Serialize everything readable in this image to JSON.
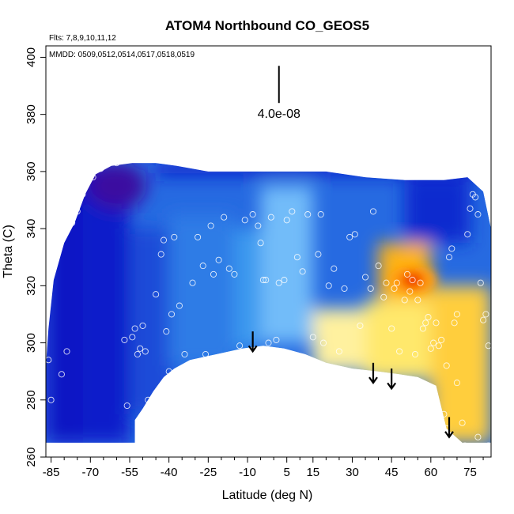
{
  "chart_data": {
    "type": "heatmap",
    "title": "ATOM4 Northbound CO_GEOS5",
    "annotations": {
      "flights": "Flts: 7,8,9,10,11,12",
      "dates": "MMDD: 0509,0512,0514,0517,0518,0519",
      "scale_label": "4.0e-08"
    },
    "xlabel": "Latitude (deg N)",
    "ylabel": "Theta (C)",
    "xlim": [
      -87,
      83
    ],
    "ylim": [
      260,
      404
    ],
    "x_ticks": [
      -85,
      -70,
      -55,
      -40,
      -25,
      -10,
      5,
      15,
      30,
      45,
      60,
      75
    ],
    "x_tick_labels": [
      "-85",
      "-70",
      "-55",
      "-40",
      "-25",
      "-10",
      "5",
      "15",
      "30",
      "45",
      "60",
      "75"
    ],
    "x_minor_ticks": [
      -80,
      -75,
      -65,
      -60,
      -50,
      -45,
      -35,
      -30,
      -20,
      -15,
      -5,
      0,
      10,
      20,
      25,
      35,
      40,
      50,
      55,
      65,
      70,
      80
    ],
    "y_ticks": [
      260,
      280,
      300,
      320,
      340,
      360,
      380,
      400
    ],
    "y_tick_labels": [
      "260",
      "280",
      "300",
      "320",
      "340",
      "360",
      "380",
      "400"
    ],
    "colormap": [
      "#3a0aa0",
      "#0a14c8",
      "#1e5adc",
      "#3c9bf0",
      "#96d2ff",
      "#fffff0",
      "#ffe664",
      "#ffb414",
      "#ff7800",
      "#e60000"
    ],
    "field_patches": [
      {
        "lat_range": [
          -87,
          -73
        ],
        "theta_range": [
          265,
          360
        ],
        "level": 0.1
      },
      {
        "lat_range": [
          -73,
          -55
        ],
        "theta_range": [
          265,
          363
        ],
        "level": 0.12
      },
      {
        "lat_range": [
          -55,
          -38
        ],
        "theta_range": [
          275,
          340
        ],
        "level": 0.2
      },
      {
        "lat_range": [
          -40,
          -15
        ],
        "theta_range": [
          292,
          345
        ],
        "level": 0.28
      },
      {
        "lat_range": [
          -15,
          -5
        ],
        "theta_range": [
          298,
          340
        ],
        "level": 0.33
      },
      {
        "lat_range": [
          -5,
          15
        ],
        "theta_range": [
          300,
          355
        ],
        "level": 0.4
      },
      {
        "lat_range": [
          15,
          35
        ],
        "theta_range": [
          290,
          312
        ],
        "level": 0.62
      },
      {
        "lat_range": [
          35,
          60
        ],
        "theta_range": [
          287,
          315
        ],
        "level": 0.66
      },
      {
        "lat_range": [
          40,
          60
        ],
        "theta_range": [
          315,
          335
        ],
        "level": 0.78
      },
      {
        "lat_range": [
          60,
          83
        ],
        "theta_range": [
          265,
          320
        ],
        "level": 0.72
      },
      {
        "lat_range": [
          50,
          75
        ],
        "theta_range": [
          335,
          358
        ],
        "level": 0.15
      }
    ],
    "hotspot": {
      "lat": 53,
      "theta": 322,
      "level": 0.95
    },
    "purple_region": {
      "lat": -60,
      "theta": 355,
      "level": 0.0
    },
    "observations": [
      [
        -86,
        294
      ],
      [
        -85,
        280
      ],
      [
        -84,
        329
      ],
      [
        -83,
        333
      ],
      [
        -81,
        289
      ],
      [
        -79,
        297
      ],
      [
        -77,
        342
      ],
      [
        -75,
        346
      ],
      [
        -73,
        352
      ],
      [
        -71,
        357
      ],
      [
        -69,
        358
      ],
      [
        -66,
        361
      ],
      [
        -60,
        363
      ],
      [
        -57,
        301
      ],
      [
        -56,
        278
      ],
      [
        -54,
        302
      ],
      [
        -53,
        305
      ],
      [
        -52,
        296
      ],
      [
        -51,
        298
      ],
      [
        -50,
        306
      ],
      [
        -49,
        297
      ],
      [
        -48,
        280
      ],
      [
        -47,
        276
      ],
      [
        -45,
        317
      ],
      [
        -43,
        331
      ],
      [
        -42,
        336
      ],
      [
        -41,
        304
      ],
      [
        -40,
        290
      ],
      [
        -39,
        310
      ],
      [
        -38,
        337
      ],
      [
        -36,
        313
      ],
      [
        -34,
        296
      ],
      [
        -31,
        321
      ],
      [
        -29,
        337
      ],
      [
        -27,
        327
      ],
      [
        -26,
        296
      ],
      [
        -24,
        341
      ],
      [
        -23,
        324
      ],
      [
        -21,
        329
      ],
      [
        -19,
        344
      ],
      [
        -17,
        326
      ],
      [
        -15,
        324
      ],
      [
        -13,
        299
      ],
      [
        -11,
        343
      ],
      [
        -8,
        345
      ],
      [
        -6,
        341
      ],
      [
        -5,
        335
      ],
      [
        -4,
        322
      ],
      [
        -3,
        322
      ],
      [
        -2,
        300
      ],
      [
        -1,
        344
      ],
      [
        1,
        301
      ],
      [
        2,
        321
      ],
      [
        4,
        322
      ],
      [
        5,
        343
      ],
      [
        7,
        346
      ],
      [
        9,
        330
      ],
      [
        11,
        325
      ],
      [
        13,
        345
      ],
      [
        15,
        302
      ],
      [
        17,
        331
      ],
      [
        18,
        345
      ],
      [
        19,
        300
      ],
      [
        21,
        320
      ],
      [
        23,
        326
      ],
      [
        25,
        297
      ],
      [
        27,
        319
      ],
      [
        29,
        337
      ],
      [
        31,
        338
      ],
      [
        33,
        306
      ],
      [
        35,
        323
      ],
      [
        37,
        319
      ],
      [
        38,
        346
      ],
      [
        40,
        327
      ],
      [
        42,
        316
      ],
      [
        43,
        321
      ],
      [
        45,
        305
      ],
      [
        46,
        319
      ],
      [
        47,
        321
      ],
      [
        48,
        297
      ],
      [
        50,
        315
      ],
      [
        51,
        324
      ],
      [
        52,
        318
      ],
      [
        53,
        322
      ],
      [
        54,
        296
      ],
      [
        55,
        315
      ],
      [
        56,
        321
      ],
      [
        57,
        305
      ],
      [
        58,
        307
      ],
      [
        59,
        309
      ],
      [
        60,
        298
      ],
      [
        61,
        300
      ],
      [
        62,
        307
      ],
      [
        63,
        299
      ],
      [
        64,
        301
      ],
      [
        65,
        275
      ],
      [
        66,
        292
      ],
      [
        67,
        330
      ],
      [
        68,
        333
      ],
      [
        69,
        307
      ],
      [
        70,
        310
      ],
      [
        72,
        272
      ],
      [
        73,
        264
      ],
      [
        74,
        338
      ],
      [
        75,
        347
      ],
      [
        76,
        352
      ],
      [
        77,
        351
      ],
      [
        78,
        345
      ],
      [
        79,
        321
      ],
      [
        80,
        308
      ],
      [
        81,
        310
      ],
      [
        82,
        299
      ],
      [
        82,
        264
      ],
      [
        78,
        267
      ],
      [
        70,
        286
      ],
      [
        66,
        270
      ]
    ],
    "arrows": [
      {
        "lat": -8,
        "theta_start": 304,
        "theta_end": 297
      },
      {
        "lat": 38,
        "theta_start": 293,
        "theta_end": 286
      },
      {
        "lat": 45,
        "theta_start": 291,
        "theta_end": 284
      },
      {
        "lat": 67,
        "theta_start": 274,
        "theta_end": 267
      }
    ],
    "scale_bar": {
      "lat": 2,
      "theta_start": 397,
      "theta_end": 384
    }
  }
}
